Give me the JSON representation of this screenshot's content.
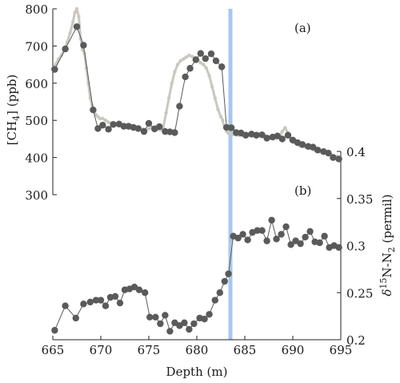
{
  "chart_data": [
    {
      "panel": "a",
      "type": "line",
      "annotation": "(a)",
      "ylabel": "[CH4] (ppb)",
      "xlabel": "Depth (m)",
      "xlim": [
        665,
        695
      ],
      "ylim": [
        300,
        800
      ],
      "yticks": [
        300,
        400,
        500,
        600,
        700,
        800
      ],
      "y_axis_side": "left",
      "series": [
        {
          "style": "gray-dots",
          "color": "#c9c7bf",
          "x": [
            665.0,
            665.3,
            665.6,
            665.9,
            666.2,
            666.5,
            666.8,
            667.1,
            667.3,
            667.5,
            667.7,
            667.9,
            668.1,
            668.3,
            668.5,
            668.7,
            668.9,
            669.1,
            669.3,
            669.5,
            669.7,
            669.9,
            670.2,
            670.5,
            670.8,
            671.1,
            671.4,
            671.7,
            672.0,
            672.3,
            672.6,
            672.9,
            673.2,
            673.5,
            673.8,
            674.1,
            674.4,
            674.7,
            675.0,
            675.3,
            675.6,
            675.9,
            676.2,
            676.5,
            676.8,
            677.1,
            677.4,
            677.7,
            678.0,
            678.3,
            678.6,
            678.9,
            679.2,
            679.5,
            679.8,
            680.1,
            680.4,
            680.7,
            681.0,
            681.3,
            681.6,
            681.9,
            682.2,
            682.5,
            682.7,
            682.9,
            683.1,
            683.3,
            683.5,
            683.8,
            684.1,
            684.4,
            684.7,
            685.0,
            685.3,
            685.6,
            685.9,
            686.2,
            686.5,
            686.8,
            687.1,
            687.4,
            687.7,
            688.0,
            688.3,
            688.6,
            688.9,
            689.2,
            689.5,
            689.8,
            690.1,
            690.4,
            690.7,
            691.0,
            691.3,
            691.6,
            691.9,
            692.2,
            692.5,
            692.8,
            693.1,
            693.4,
            693.7,
            694.0,
            694.3,
            694.6,
            694.9
          ],
          "y": [
            640,
            650,
            665,
            675,
            690,
            710,
            735,
            765,
            790,
            800,
            780,
            720,
            690,
            680,
            640,
            600,
            560,
            540,
            525,
            515,
            510,
            505,
            505,
            500,
            495,
            492,
            490,
            488,
            486,
            484,
            482,
            480,
            480,
            478,
            478,
            477,
            476,
            475,
            478,
            480,
            478,
            476,
            475,
            480,
            520,
            560,
            600,
            630,
            650,
            660,
            665,
            670,
            675,
            672,
            668,
            662,
            655,
            650,
            640,
            620,
            590,
            560,
            530,
            510,
            500,
            480,
            470,
            465,
            463,
            462,
            461,
            460,
            459,
            462,
            463,
            461,
            460,
            462,
            464,
            461,
            458,
            457,
            456,
            455,
            453,
            455,
            470,
            480,
            465,
            445,
            440,
            438,
            432,
            430,
            428,
            425,
            424,
            420,
            418,
            416,
            414,
            412,
            410,
            408,
            405,
            403,
            400
          ]
        },
        {
          "style": "dark-line-markers",
          "color": "#5a5a5a",
          "x": [
            665.2,
            666.3,
            667.5,
            668.2,
            669.2,
            669.7,
            670.2,
            670.8,
            671.3,
            671.9,
            672.4,
            672.9,
            673.4,
            673.9,
            674.5,
            675.0,
            675.6,
            676.1,
            676.7,
            677.2,
            677.7,
            678.2,
            678.8,
            679.3,
            679.9,
            680.4,
            680.9,
            681.5,
            682.0,
            682.6,
            683.1,
            683.6,
            684.1,
            684.6,
            685.1,
            685.7,
            686.2,
            686.8,
            687.3,
            687.9,
            688.4,
            688.9,
            689.5,
            690.0,
            690.5,
            691.0,
            691.6,
            692.1,
            692.6,
            693.2,
            693.7,
            694.2,
            694.8
          ],
          "y": [
            637,
            692,
            752,
            702,
            528,
            478,
            487,
            476,
            489,
            490,
            484,
            484,
            481,
            478,
            470,
            492,
            477,
            483,
            470,
            469,
            467,
            538,
            617,
            640,
            663,
            680,
            666,
            679,
            660,
            644,
            481,
            480,
            467,
            466,
            460,
            463,
            460,
            461,
            452,
            455,
            458,
            450,
            460,
            447,
            440,
            435,
            430,
            428,
            420,
            416,
            412,
            400,
            396
          ]
        }
      ]
    },
    {
      "panel": "b",
      "type": "line",
      "annotation": "(b)",
      "ylabel": "δ15N-N2 (permil)",
      "xlabel": "Depth (m)",
      "xlim": [
        665,
        695
      ],
      "ylim": [
        0.2,
        0.4
      ],
      "yticks": [
        0.2,
        0.25,
        0.3,
        0.35,
        0.4
      ],
      "y_axis_side": "right",
      "series": [
        {
          "style": "dark-line-markers",
          "color": "#5a5a5a",
          "x": [
            665.2,
            666.3,
            667.4,
            668.2,
            668.9,
            669.5,
            670.0,
            670.5,
            671.0,
            671.5,
            672.0,
            672.5,
            673.0,
            673.5,
            674.0,
            674.6,
            675.1,
            675.7,
            676.2,
            676.7,
            677.2,
            677.7,
            678.2,
            678.7,
            679.2,
            679.7,
            680.3,
            680.8,
            681.3,
            681.9,
            682.4,
            682.9,
            683.3,
            683.8,
            684.3,
            684.8,
            685.3,
            685.8,
            686.3,
            686.8,
            687.3,
            687.8,
            688.3,
            688.8,
            689.3,
            689.8,
            690.3,
            690.8,
            691.3,
            691.8,
            692.3,
            692.8,
            693.3,
            693.8,
            694.3,
            694.8
          ],
          "y": [
            0.21,
            0.236,
            0.223,
            0.238,
            0.24,
            0.242,
            0.242,
            0.236,
            0.245,
            0.246,
            0.239,
            0.253,
            0.254,
            0.256,
            0.253,
            0.25,
            0.224,
            0.224,
            0.217,
            0.226,
            0.209,
            0.218,
            0.215,
            0.218,
            0.211,
            0.217,
            0.223,
            0.222,
            0.227,
            0.242,
            0.25,
            0.262,
            0.27,
            0.31,
            0.308,
            0.312,
            0.306,
            0.314,
            0.316,
            0.316,
            0.305,
            0.327,
            0.307,
            0.312,
            0.32,
            0.301,
            0.305,
            0.302,
            0.309,
            0.315,
            0.304,
            0.303,
            0.31,
            0.298,
            0.3,
            0.298
          ]
        }
      ]
    }
  ],
  "highlight": {
    "x": 683.5,
    "color": "#a9c7ec"
  },
  "xticks": [
    665,
    670,
    675,
    680,
    685,
    690,
    695
  ],
  "axes": {
    "ch4_label": "[CH",
    "ch4_sub": "4",
    "ch4_unit": "] (ppb)",
    "d15n_delta": "δ",
    "d15n_sup": "15",
    "d15n_mid": "N-N",
    "d15n_sub": "2",
    "d15n_unit": " (permil)",
    "depth_label": "Depth (m)",
    "tag_a": "(a)",
    "tag_b": "(b)"
  }
}
